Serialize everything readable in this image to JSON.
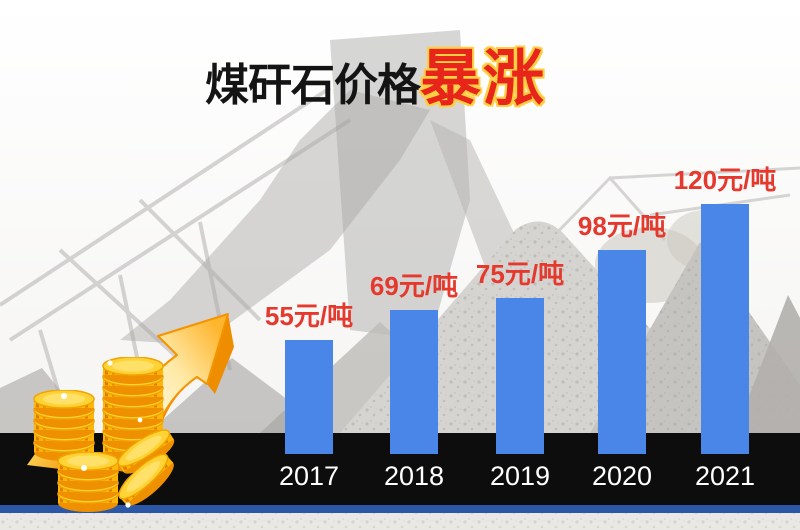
{
  "title": {
    "prefix": "煤矸石价格",
    "highlight": "暴涨"
  },
  "chart_data": {
    "type": "bar",
    "title": "煤矸石价格暴涨",
    "categories": [
      "2017",
      "2018",
      "2019",
      "2020",
      "2021"
    ],
    "values": [
      55,
      69,
      75,
      98,
      120
    ],
    "value_labels": [
      "55元/吨",
      "69元/吨",
      "75元/吨",
      "98元/吨",
      "120元/吨"
    ],
    "unit": "元/吨",
    "xlabel": "",
    "ylabel": "",
    "ylim": [
      0,
      120
    ],
    "grid": false,
    "legend": "none",
    "bar_color": "#4a86e8",
    "value_label_color": "#e5392e",
    "category_label_color": "#ffffff",
    "baseline_color": "#0d0d0d"
  },
  "colors": {
    "title_black": "#141414",
    "title_red": "#e8251b",
    "title_outline": "#ffcf43",
    "black_strip": "#0d0d0d",
    "navy_strip": "#2c56a6",
    "coin_gold": "#ffc81f",
    "arrow_orange": "#ff9b1a"
  },
  "decor": {
    "coins_icon": "gold-coin-stacks",
    "arrow_icon": "rising-trend-arrow",
    "background": "faded crushing-plant and gravel piles photo"
  }
}
